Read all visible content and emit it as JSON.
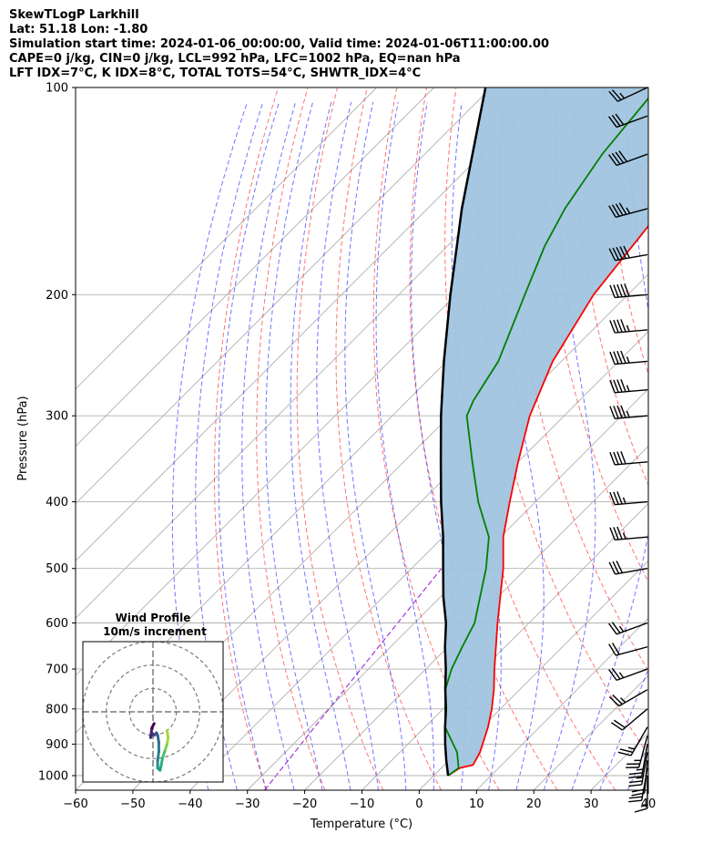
{
  "header": {
    "lines": [
      "SkewTLogP Larkhill",
      "Lat: 51.18   Lon: -1.80",
      "Simulation start time: 2024-01-06_00:00:00, Valid time: 2024-01-06T11:00:00.00",
      "CAPE=0 j/kg, CIN=0 j/kg, LCL=992 hPa, LFC=1002 hPa, EQ=nan hPa",
      "LFT IDX=7°C, K IDX=8°C, TOTAL TOTS=54°C, SHWTR_IDX=4°C"
    ]
  },
  "chart_data": [
    {
      "type": "line",
      "xlabel": "Temperature (°C)",
      "ylabel": "Pressure (hPa)",
      "xlim": [
        -60,
        40
      ],
      "ylim": [
        1050,
        100
      ],
      "yscale": "log",
      "grid": true,
      "x_ticks": [
        "−60",
        "−50",
        "−40",
        "−30",
        "−20",
        "−10",
        "0",
        "10",
        "20",
        "30",
        "40"
      ],
      "y_ticks": [
        "1000",
        "900",
        "800",
        "700",
        "600",
        "500",
        "400",
        "300",
        "200",
        "100"
      ],
      "skew_isotherms": true,
      "dry_adiabats_color": "#ff0000",
      "moist_adiabats_color": "#0000ff",
      "mixing_ratio_color": "#9400d3",
      "shaded_area_color": "#a0c4df",
      "series": [
        {
          "role": "temperature",
          "color": "#ff0000",
          "points": [
            {
              "p": 1000,
              "t": 2.5
            },
            {
              "p": 975,
              "t": 3.2
            },
            {
              "p": 965,
              "t": 5.0
            },
            {
              "p": 925,
              "t": 4.0
            },
            {
              "p": 850,
              "t": 1.0
            },
            {
              "p": 800,
              "t": -1.5
            },
            {
              "p": 750,
              "t": -4.5
            },
            {
              "p": 700,
              "t": -8.0
            },
            {
              "p": 600,
              "t": -15.5
            },
            {
              "p": 500,
              "t": -24.0
            },
            {
              "p": 450,
              "t": -29.5
            },
            {
              "p": 400,
              "t": -34.5
            },
            {
              "p": 350,
              "t": -40.0
            },
            {
              "p": 300,
              "t": -46.0
            },
            {
              "p": 250,
              "t": -51.5
            },
            {
              "p": 200,
              "t": -56.0
            },
            {
              "p": 150,
              "t": -59.0
            },
            {
              "p": 130,
              "t": -60.0
            },
            {
              "p": 110,
              "t": -61.5
            },
            {
              "p": 100,
              "t": -62.5
            }
          ]
        },
        {
          "role": "dewpoint",
          "color": "#008000",
          "points": [
            {
              "p": 1000,
              "t": 2.5
            },
            {
              "p": 975,
              "t": 3.0
            },
            {
              "p": 925,
              "t": 0.0
            },
            {
              "p": 850,
              "t": -6.5
            },
            {
              "p": 750,
              "t": -13.0
            },
            {
              "p": 700,
              "t": -15.5
            },
            {
              "p": 650,
              "t": -17.5
            },
            {
              "p": 600,
              "t": -19.5
            },
            {
              "p": 500,
              "t": -27.0
            },
            {
              "p": 450,
              "t": -32.0
            },
            {
              "p": 400,
              "t": -40.0
            },
            {
              "p": 350,
              "t": -48.0
            },
            {
              "p": 300,
              "t": -57.0
            },
            {
              "p": 285,
              "t": -58.5
            },
            {
              "p": 250,
              "t": -61.0
            },
            {
              "p": 200,
              "t": -68.0
            },
            {
              "p": 170,
              "t": -73.0
            },
            {
              "p": 150,
              "t": -76.0
            },
            {
              "p": 125,
              "t": -79.0
            },
            {
              "p": 100,
              "t": -81.0
            }
          ]
        },
        {
          "role": "parcel",
          "color": "#000000",
          "points": [
            {
              "p": 1000,
              "t": 2.5
            },
            {
              "p": 950,
              "t": -0.5
            },
            {
              "p": 900,
              "t": -3.5
            },
            {
              "p": 850,
              "t": -6.5
            },
            {
              "p": 800,
              "t": -9.5
            },
            {
              "p": 750,
              "t": -13.0
            },
            {
              "p": 700,
              "t": -16.5
            },
            {
              "p": 650,
              "t": -20.5
            },
            {
              "p": 600,
              "t": -24.5
            },
            {
              "p": 550,
              "t": -29.5
            },
            {
              "p": 500,
              "t": -34.5
            },
            {
              "p": 450,
              "t": -40.0
            },
            {
              "p": 400,
              "t": -46.5
            },
            {
              "p": 350,
              "t": -53.5
            },
            {
              "p": 300,
              "t": -61.5
            },
            {
              "p": 250,
              "t": -70.5
            },
            {
              "p": 200,
              "t": -81.0
            },
            {
              "p": 150,
              "t": -94.0
            },
            {
              "p": 100,
              "t": -111.0
            }
          ]
        }
      ],
      "wind_barbs": [
        {
          "p": 1000,
          "speed_kt": 15,
          "dir_deg": 180
        },
        {
          "p": 975,
          "speed_kt": 20,
          "dir_deg": 190
        },
        {
          "p": 950,
          "speed_kt": 20,
          "dir_deg": 185
        },
        {
          "p": 925,
          "speed_kt": 25,
          "dir_deg": 190
        },
        {
          "p": 900,
          "speed_kt": 25,
          "dir_deg": 190
        },
        {
          "p": 875,
          "speed_kt": 25,
          "dir_deg": 195
        },
        {
          "p": 850,
          "speed_kt": 25,
          "dir_deg": 210
        },
        {
          "p": 800,
          "speed_kt": 20,
          "dir_deg": 230
        },
        {
          "p": 750,
          "speed_kt": 25,
          "dir_deg": 240
        },
        {
          "p": 700,
          "speed_kt": 25,
          "dir_deg": 250
        },
        {
          "p": 650,
          "speed_kt": 20,
          "dir_deg": 255
        },
        {
          "p": 600,
          "speed_kt": 25,
          "dir_deg": 250
        },
        {
          "p": 500,
          "speed_kt": 30,
          "dir_deg": 260
        },
        {
          "p": 450,
          "speed_kt": 35,
          "dir_deg": 265
        },
        {
          "p": 400,
          "speed_kt": 35,
          "dir_deg": 265
        },
        {
          "p": 350,
          "speed_kt": 40,
          "dir_deg": 265
        },
        {
          "p": 300,
          "speed_kt": 45,
          "dir_deg": 265
        },
        {
          "p": 275,
          "speed_kt": 45,
          "dir_deg": 265
        },
        {
          "p": 250,
          "speed_kt": 45,
          "dir_deg": 265
        },
        {
          "p": 225,
          "speed_kt": 45,
          "dir_deg": 265
        },
        {
          "p": 200,
          "speed_kt": 50,
          "dir_deg": 265
        },
        {
          "p": 175,
          "speed_kt": 50,
          "dir_deg": 260
        },
        {
          "p": 150,
          "speed_kt": 45,
          "dir_deg": 255
        },
        {
          "p": 125,
          "speed_kt": 40,
          "dir_deg": 250
        },
        {
          "p": 110,
          "speed_kt": 30,
          "dir_deg": 250
        },
        {
          "p": 100,
          "speed_kt": 25,
          "dir_deg": 245
        }
      ]
    },
    {
      "type": "scatter",
      "title": "Wind Profile\n10m/s increment",
      "title_lines": [
        "Wind Profile",
        "10m/s increment"
      ],
      "rings_ms": [
        10,
        20,
        30
      ],
      "xlim": [
        -30,
        30
      ],
      "ylim": [
        -30,
        30
      ],
      "grid": false,
      "hodograph_points": [
        {
          "u": 6.0,
          "v": -8.0,
          "color": "#a0da39"
        },
        {
          "u": 6.5,
          "v": -11.0,
          "color": "#a0da39"
        },
        {
          "u": 6.0,
          "v": -14.0,
          "color": "#7ad151"
        },
        {
          "u": 5.0,
          "v": -17.0,
          "color": "#4ac16d"
        },
        {
          "u": 4.0,
          "v": -20.0,
          "color": "#2fb47c"
        },
        {
          "u": 3.5,
          "v": -23.0,
          "color": "#22a884"
        },
        {
          "u": 3.0,
          "v": -25.0,
          "color": "#1fa187"
        },
        {
          "u": 2.0,
          "v": -24.0,
          "color": "#21918c"
        },
        {
          "u": 2.0,
          "v": -21.0,
          "color": "#26828e"
        },
        {
          "u": 2.5,
          "v": -17.0,
          "color": "#2a788e"
        },
        {
          "u": 2.5,
          "v": -13.0,
          "color": "#31688e"
        },
        {
          "u": 2.0,
          "v": -10.0,
          "color": "#355f8d"
        },
        {
          "u": 1.5,
          "v": -9.0,
          "color": "#3b528b"
        },
        {
          "u": 0.5,
          "v": -10.0,
          "color": "#414487"
        },
        {
          "u": -0.5,
          "v": -9.0,
          "color": "#472d7b"
        },
        {
          "u": -1.0,
          "v": -11.0,
          "color": "#482475"
        },
        {
          "u": -0.5,
          "v": -7.0,
          "color": "#440154"
        },
        {
          "u": 0.5,
          "v": -5.0,
          "color": "#440154"
        }
      ]
    }
  ]
}
